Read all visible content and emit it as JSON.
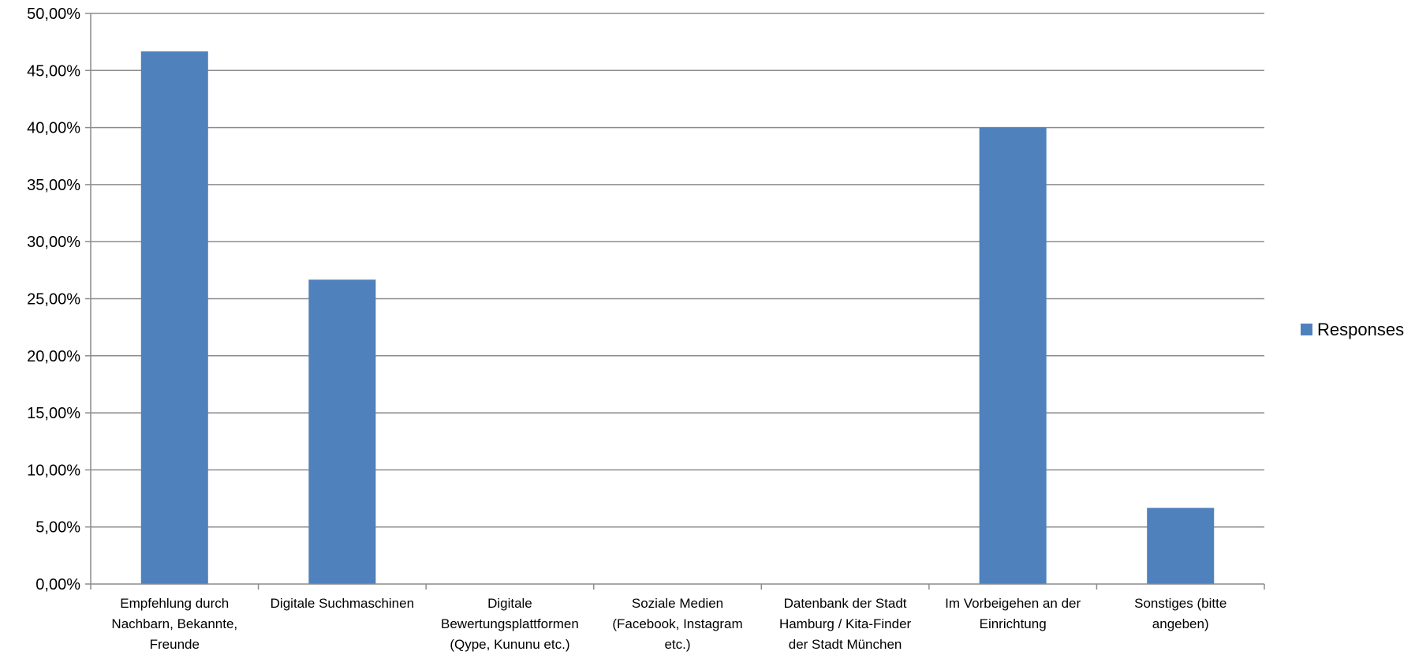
{
  "chart_data": {
    "type": "bar",
    "title": "",
    "xlabel": "",
    "ylabel": "",
    "categories": [
      [
        "Empfehlung durch",
        "Nachbarn, Bekannte,",
        "Freunde"
      ],
      [
        "Digitale Suchmaschinen"
      ],
      [
        "Digitale",
        "Bewertungsplattformen",
        "(Qype, Kununu etc.)"
      ],
      [
        "Soziale Medien",
        "(Facebook, Instagram",
        "etc.)"
      ],
      [
        "Datenbank der Stadt",
        "Hamburg / Kita-Finder",
        "der Stadt München"
      ],
      [
        "Im Vorbeigehen an der",
        "Einrichtung"
      ],
      [
        "Sonstiges (bitte",
        "angeben)"
      ]
    ],
    "series": [
      {
        "name": "Responses",
        "color": "#4f81bd",
        "values": [
          0.4667,
          0.2667,
          0,
          0,
          0,
          0.4,
          0.0667
        ]
      }
    ],
    "ylim": [
      0,
      0.5
    ],
    "yticks": [
      0,
      0.05,
      0.1,
      0.15,
      0.2,
      0.25,
      0.3,
      0.35,
      0.4,
      0.45,
      0.5
    ],
    "ytick_labels": [
      "0,00%",
      "5,00%",
      "10,00%",
      "15,00%",
      "20,00%",
      "25,00%",
      "30,00%",
      "35,00%",
      "40,00%",
      "45,00%",
      "50,00%"
    ],
    "grid": true,
    "gridline_color": "#8c8c8c",
    "legend": {
      "position": "right",
      "entries": [
        "Responses"
      ]
    }
  }
}
